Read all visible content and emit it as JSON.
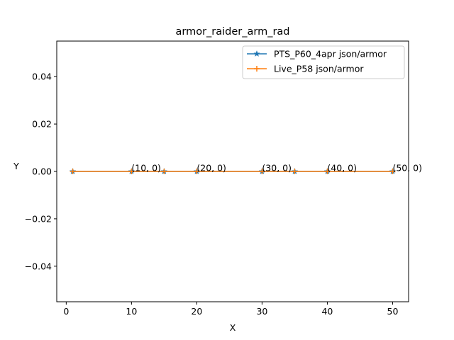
{
  "chart_data": {
    "type": "line",
    "title": "armor_raider_arm_rad",
    "xlabel": "X",
    "ylabel": "Y",
    "xlim": [
      -1.45,
      52.45
    ],
    "ylim": [
      -0.055,
      0.055
    ],
    "xticks": [
      0,
      10,
      20,
      30,
      40,
      50
    ],
    "xtick_labels": [
      "0",
      "10",
      "20",
      "30",
      "40",
      "50"
    ],
    "yticks": [
      0.04,
      0.02,
      0.0,
      -0.02,
      -0.04
    ],
    "ytick_labels": [
      "0.04",
      "0.02",
      "0.00",
      "−0.02",
      "−0.04"
    ],
    "grid": false,
    "legend_position": "upper right",
    "series": [
      {
        "name": "PTS_P60_4apr json/armor",
        "color": "#1f77b4",
        "marker": "star",
        "x": [
          1,
          10,
          15,
          20,
          30,
          35,
          40,
          50
        ],
        "y": [
          0,
          0,
          0,
          0,
          0,
          0,
          0,
          0
        ]
      },
      {
        "name": "Live_P58 json/armor",
        "color": "#ff7f0e",
        "marker": "plus",
        "x": [
          1,
          10,
          15,
          20,
          30,
          35,
          40,
          50
        ],
        "y": [
          0,
          0,
          0,
          0,
          0,
          0,
          0,
          0
        ]
      }
    ],
    "annotations": [
      {
        "text": "(10, 0)",
        "x": 10,
        "y": 0
      },
      {
        "text": "(20, 0)",
        "x": 20,
        "y": 0
      },
      {
        "text": "(30, 0)",
        "x": 30,
        "y": 0
      },
      {
        "text": "(40, 0)",
        "x": 40,
        "y": 0
      },
      {
        "text": "(50, 0)",
        "x": 50,
        "y": 0
      }
    ]
  }
}
